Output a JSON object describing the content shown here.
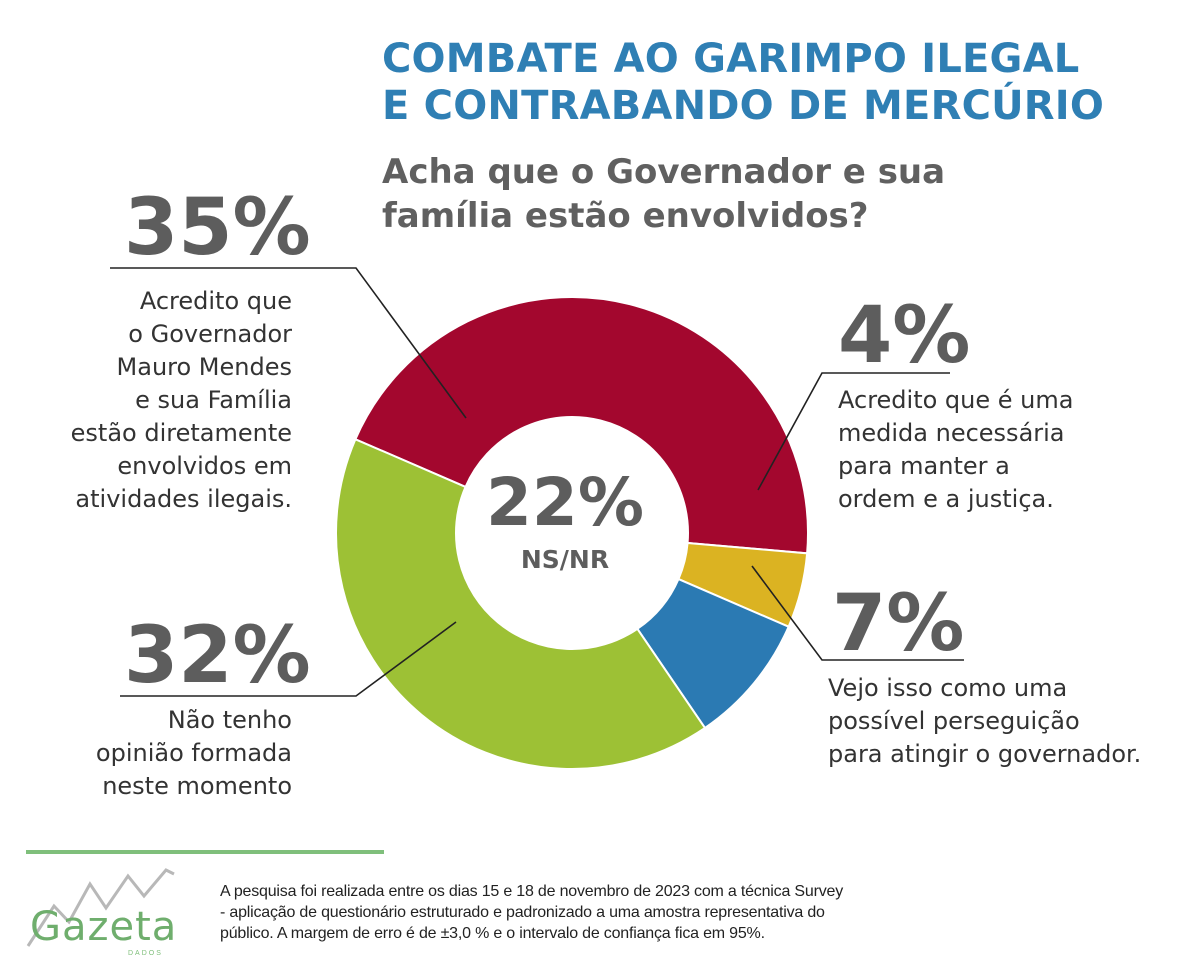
{
  "header": {
    "title_line1": "COMBATE AO GARIMPO ILEGAL",
    "title_line2": "E CONTRABANDO DE MERCÚRIO",
    "question_line1": "Acha que o Governador e sua",
    "question_line2": "família estão envolvidos?"
  },
  "chart_data": {
    "type": "pie",
    "donut": true,
    "values": [
      35,
      4,
      7,
      32,
      22
    ],
    "value_labels": [
      "35%",
      "4%",
      "7%",
      "32%",
      "22%"
    ],
    "categories": [
      "Acredito que o Governador Mauro Mendes e sua Família estão diretamente envolvidos em atividades ilegais.",
      "Acredito que é uma medida necessária para manter a ordem e a justiça.",
      "Vejo isso como uma possível perseguição para atingir o governador.",
      "Não tenho opinião formada neste momento",
      "NS/NR"
    ],
    "colors": [
      "#a3072e",
      "#dbb322",
      "#2b7ab3",
      "#9dc135",
      "#ffffff"
    ],
    "center_label": "NS/NR",
    "center_value": "22%"
  },
  "labels": {
    "s35": {
      "pct": "35%",
      "lines": [
        "Acredito que",
        "o Governador",
        "Mauro Mendes",
        "e sua Família",
        "estão diretamente",
        "envolvidos em",
        "atividades ilegais."
      ]
    },
    "s4": {
      "pct": "4%",
      "lines": [
        "Acredito que é uma",
        "medida necessária",
        "para manter a",
        "ordem e a justiça."
      ]
    },
    "s7": {
      "pct": "7%",
      "lines": [
        "Vejo isso como uma",
        "possível perseguição",
        "para atingir o governador."
      ]
    },
    "s32": {
      "pct": "32%",
      "lines": [
        "Não tenho",
        "opinião formada",
        "neste momento"
      ]
    },
    "center": {
      "pct": "22%",
      "label": "NS/NR"
    }
  },
  "footer": {
    "logo_text": "Gazeta",
    "logo_sub": "DADOS",
    "note": "A pesquisa foi realizada entre os dias 15 e 18 de novembro de 2023 com a técnica Survey\n- aplicação de questionário estruturado e padronizado a uma amostra representativa do\npúblico. A margem de erro é de  ±3,0 % e o intervalo de confiança fica em 95%."
  }
}
